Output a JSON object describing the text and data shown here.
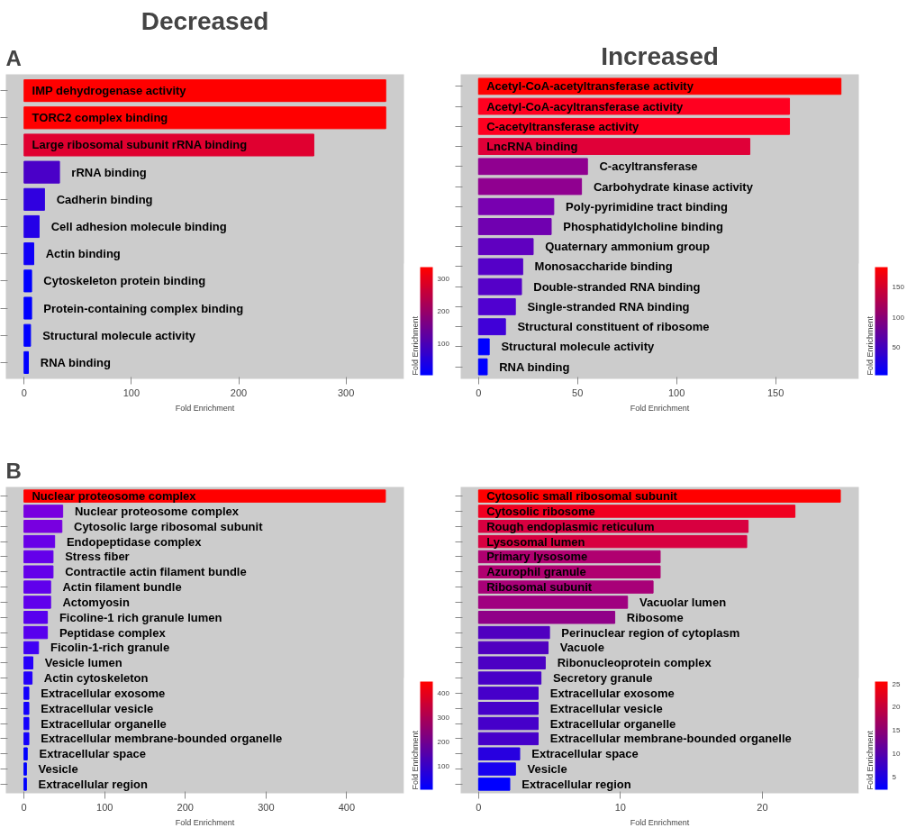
{
  "chart_data": [
    {
      "type": "bar",
      "orientation": "horizontal",
      "title": "Decreased",
      "annotations": [
        "A"
      ],
      "xlabel": "Fold Enrichment",
      "tick_labels": "x",
      "grid": false,
      "categories": [
        "IMP dehydrogenase activity",
        "TORC2 complex binding",
        "Large ribosomal subunit rRNA binding",
        "rRNA binding",
        "Cadherin binding",
        "Cell adhesion molecule binding",
        "Actin binding",
        "Cytoskeleton protein binding",
        "Protein-containing complex binding",
        "Structural molecule activity",
        "RNA binding"
      ],
      "values": [
        337,
        337,
        270,
        33,
        19,
        14,
        9,
        7,
        7,
        6,
        4
      ],
      "colors": [
        "#ff0000",
        "#ff0000",
        "#e00030",
        "#4a00c8",
        "#3000e0",
        "#2400e8",
        "#1000f8",
        "#0000ff",
        "#0000ff",
        "#0000ff",
        "#0000ff"
      ],
      "xlim": [
        -17,
        354
      ],
      "xticks": [
        0,
        100,
        200,
        300
      ],
      "clabel": "Fold Enrichment",
      "clim": [
        4,
        337
      ],
      "cticks": [
        100,
        200,
        300
      ]
    },
    {
      "type": "bar",
      "orientation": "horizontal",
      "title": "Increased",
      "xlabel": "Fold Enrichment",
      "tick_labels": "x",
      "grid": false,
      "categories": [
        "Acetyl-CoA-acetyltransferase activity",
        "Acetyl-CoA-acyltransferase activity",
        "C-acetyltransferase activity",
        "LncRNA binding",
        "C-acyltransferase",
        "Carbohydrate kinase activity",
        "Poly-pyrimidine tract binding",
        "Phosphatidylcholine binding",
        "Quaternary ammonium group",
        "Monosaccharide binding",
        "Double-stranded RNA binding",
        "Single-stranded RNA binding",
        "Structural constituent of ribosome",
        "Structural molecule activity",
        "RNA binding"
      ],
      "values": [
        183,
        157,
        157,
        137,
        55,
        52,
        38,
        36.7,
        27.6,
        22.3,
        21.7,
        18.6,
        13.6,
        5.4,
        4.4
      ],
      "colors": [
        "#ff0000",
        "#ff0020",
        "#ff0020",
        "#e00038",
        "#900090",
        "#900090",
        "#7800b0",
        "#7000b0",
        "#6000c0",
        "#5500c8",
        "#5500c8",
        "#5000d0",
        "#4000d8",
        "#0000ff",
        "#0000ff"
      ],
      "xlim": [
        -9,
        192
      ],
      "xticks": [
        0,
        50,
        100,
        150
      ],
      "clabel": "Fold Enrichment",
      "clim": [
        4.4,
        183
      ],
      "cticks": [
        50,
        100,
        150
      ]
    },
    {
      "type": "bar",
      "orientation": "horizontal",
      "annotations": [
        "B"
      ],
      "xlabel": "Fold Enrichment",
      "tick_labels": "x",
      "grid": false,
      "categories": [
        "Nuclear proteosome complex",
        "Nuclear proteosome complex",
        "Cytosolic large ribosomal subunit",
        "Endopeptidase complex",
        "Stress fiber",
        "Contractile actin filament bundle",
        "Actin filament bundle",
        "Actomyosin",
        "Ficoline-1 rich granule lumen",
        "Peptidase complex",
        "Ficolin-1-rich granule",
        "Vesicle lumen",
        "Actin cytoskeleton",
        "Extracellular exosome",
        "Extracellular vesicle",
        "Extracellular organelle",
        "Extracellular membrane-bounded organelle",
        "Extracellular space",
        "Vesicle",
        "Extracellular region"
      ],
      "values": [
        448,
        48,
        47,
        38,
        36,
        36,
        33,
        33,
        29,
        29,
        18,
        11,
        10,
        6,
        6,
        6,
        6,
        4,
        3,
        3
      ],
      "colors": [
        "#ff0000",
        "#7800e0",
        "#7800e0",
        "#6800e8",
        "#6400ea",
        "#6400ea",
        "#6000ec",
        "#6000ec",
        "#5800ee",
        "#5800ee",
        "#4000f4",
        "#2800fa",
        "#2400fa",
        "#1400fc",
        "#1400fc",
        "#1400fc",
        "#1400fc",
        "#0000ff",
        "#0000ff",
        "#0000ff"
      ],
      "xlim": [
        -22.5,
        471
      ],
      "xticks": [
        0,
        100,
        200,
        300,
        400
      ],
      "clabel": "Fold Enrichment",
      "clim": [
        3,
        448
      ],
      "cticks": [
        100,
        200,
        300,
        400
      ]
    },
    {
      "type": "bar",
      "orientation": "horizontal",
      "xlabel": "Fold Enrichment",
      "tick_labels": "x",
      "grid": false,
      "categories": [
        "Cytosolic small ribosomal subunit",
        "Cytosolic ribosome",
        "Rough endoplasmic reticulum",
        "Lysosomal lumen",
        "Primary lysosome",
        "Azurophil granule",
        "Ribosomal subunit",
        "Vacuolar lumen",
        "Ribosome",
        "Perinuclear region of cytoplasm",
        "Vacuole",
        "Ribonucleoprotein complex",
        "Secretory granule",
        "Extracellular exosome",
        "Extracellular vesicle",
        "Extracellular organelle",
        "Extracellular membrane-bounded organelle",
        "Extracellular space",
        "Vesicle",
        "Extracellular region"
      ],
      "values": [
        25.5,
        22.3,
        19.0,
        18.9,
        12.8,
        12.8,
        12.3,
        10.5,
        9.6,
        5.0,
        4.9,
        4.7,
        4.4,
        4.2,
        4.2,
        4.2,
        4.2,
        2.9,
        2.6,
        2.2
      ],
      "colors": [
        "#ff0000",
        "#f00020",
        "#d80040",
        "#d80040",
        "#b00070",
        "#b00070",
        "#a80078",
        "#a00080",
        "#900088",
        "#5000c0",
        "#5000c0",
        "#4c00c4",
        "#4800c8",
        "#4600ca",
        "#4600ca",
        "#4600ca",
        "#4600ca",
        "#2800e0",
        "#1800f0",
        "#0000ff"
      ],
      "xlim": [
        -1.26,
        26.8
      ],
      "xticks": [
        0,
        10,
        20
      ],
      "clabel": "Fold Enrichment",
      "clim": [
        2.2,
        25.5
      ],
      "cticks": [
        5,
        10,
        15,
        20,
        25
      ]
    }
  ]
}
